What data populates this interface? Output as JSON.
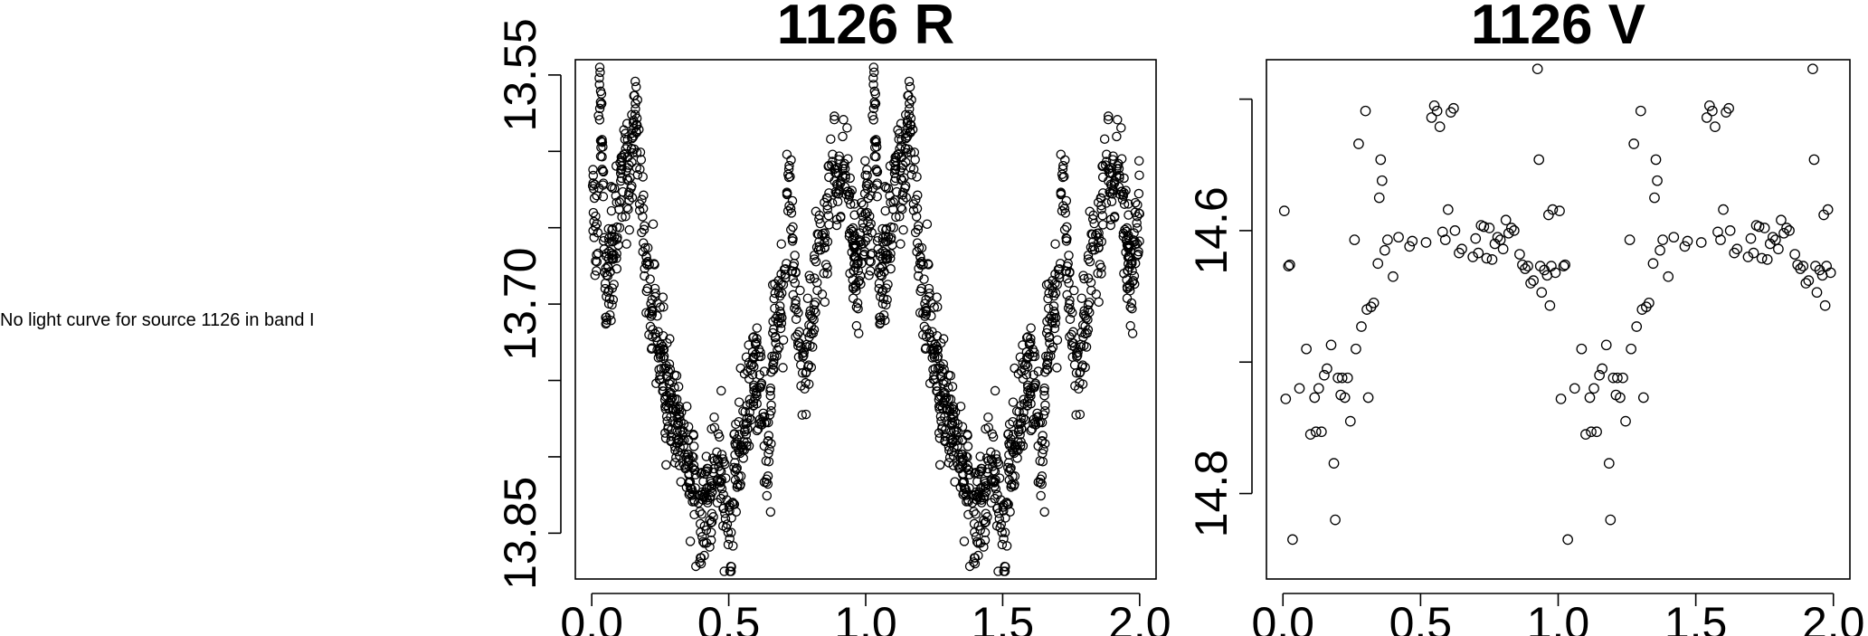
{
  "note": "No light curve for source 1126 in band I",
  "chart_data": [
    {
      "type": "scatter",
      "title": "1126 R",
      "xlabel": "",
      "ylabel": "",
      "xlim": [
        -0.06,
        2.06
      ],
      "ylim": [
        13.88,
        13.54
      ],
      "x_ticks": [
        0.0,
        0.5,
        1.0,
        1.5,
        2.0
      ],
      "x_tick_labels": [
        "0.0",
        "0.5",
        "1.0",
        "1.5",
        "2.0"
      ],
      "y_ticks": [
        13.55,
        13.6,
        13.65,
        13.7,
        13.75,
        13.8,
        13.85
      ],
      "y_tick_labels": [
        "13.55",
        "",
        "",
        "13.70",
        "",
        "",
        "13.85"
      ],
      "grid": false,
      "phase_folded": true,
      "model": "Dense phase-folded light curve with roughly 1900 observations; double-humped variation repeated over two cycles of phase.",
      "series": [
        {
          "points_first_cycle_sample": [
            [
              0.0,
              13.63
            ],
            [
              0.02,
              13.67
            ],
            [
              0.03,
              13.55
            ],
            [
              0.05,
              13.69
            ],
            [
              0.08,
              13.66
            ],
            [
              0.1,
              13.63
            ],
            [
              0.12,
              13.6
            ],
            [
              0.14,
              13.63
            ],
            [
              0.16,
              13.56
            ],
            [
              0.17,
              13.61
            ],
            [
              0.19,
              13.66
            ],
            [
              0.22,
              13.7
            ],
            [
              0.25,
              13.73
            ],
            [
              0.28,
              13.76
            ],
            [
              0.31,
              13.78
            ],
            [
              0.34,
              13.8
            ],
            [
              0.37,
              13.82
            ],
            [
              0.4,
              13.84
            ],
            [
              0.44,
              13.82
            ],
            [
              0.47,
              13.8
            ],
            [
              0.5,
              13.86
            ],
            [
              0.52,
              13.82
            ],
            [
              0.55,
              13.78
            ],
            [
              0.58,
              13.75
            ],
            [
              0.61,
              13.74
            ],
            [
              0.64,
              13.8
            ],
            [
              0.67,
              13.71
            ],
            [
              0.7,
              13.7
            ],
            [
              0.72,
              13.62
            ],
            [
              0.75,
              13.72
            ],
            [
              0.78,
              13.74
            ],
            [
              0.8,
              13.72
            ],
            [
              0.83,
              13.66
            ],
            [
              0.86,
              13.65
            ],
            [
              0.88,
              13.6
            ],
            [
              0.9,
              13.63
            ],
            [
              0.93,
              13.61
            ],
            [
              0.95,
              13.66
            ],
            [
              0.97,
              13.68
            ],
            [
              1.0,
              13.63
            ]
          ]
        }
      ]
    },
    {
      "type": "scatter",
      "title": "1126 V",
      "xlabel": "",
      "ylabel": "",
      "xlim": [
        -0.06,
        2.06
      ],
      "ylim": [
        14.865,
        14.47
      ],
      "x_ticks": [
        0.0,
        0.5,
        1.0,
        1.5,
        2.0
      ],
      "x_tick_labels": [
        "0.0",
        "0.5",
        "1.0",
        "1.5",
        "2.0"
      ],
      "y_ticks": [
        14.5,
        14.6,
        14.7,
        14.8
      ],
      "y_tick_labels": [
        "",
        "14.6",
        "",
        "14.8"
      ],
      "grid": false,
      "phase_folded": true,
      "series": [
        {
          "points_first_cycle": [
            [
              0.005,
              14.585
            ],
            [
              0.01,
              14.728
            ],
            [
              0.02,
              14.627
            ],
            [
              0.025,
              14.626
            ],
            [
              0.035,
              14.835
            ],
            [
              0.06,
              14.72
            ],
            [
              0.085,
              14.69
            ],
            [
              0.1,
              14.755
            ],
            [
              0.115,
              14.727
            ],
            [
              0.12,
              14.753
            ],
            [
              0.13,
              14.72
            ],
            [
              0.14,
              14.753
            ],
            [
              0.15,
              14.71
            ],
            [
              0.16,
              14.705
            ],
            [
              0.175,
              14.687
            ],
            [
              0.185,
              14.777
            ],
            [
              0.19,
              14.82
            ],
            [
              0.2,
              14.712
            ],
            [
              0.21,
              14.725
            ],
            [
              0.215,
              14.712
            ],
            [
              0.225,
              14.727
            ],
            [
              0.235,
              14.712
            ],
            [
              0.245,
              14.745
            ],
            [
              0.26,
              14.607
            ],
            [
              0.265,
              14.69
            ],
            [
              0.275,
              14.534
            ],
            [
              0.285,
              14.673
            ],
            [
              0.3,
              14.509
            ],
            [
              0.305,
              14.66
            ],
            [
              0.31,
              14.727
            ],
            [
              0.32,
              14.658
            ],
            [
              0.33,
              14.655
            ],
            [
              0.345,
              14.625
            ],
            [
              0.35,
              14.575
            ],
            [
              0.355,
              14.546
            ],
            [
              0.36,
              14.562
            ],
            [
              0.37,
              14.615
            ],
            [
              0.38,
              14.607
            ],
            [
              0.4,
              14.635
            ],
            [
              0.42,
              14.605
            ],
            [
              0.46,
              14.612
            ],
            [
              0.47,
              14.608
            ],
            [
              0.52,
              14.609
            ],
            [
              0.54,
              14.514
            ],
            [
              0.55,
              14.505
            ],
            [
              0.56,
              14.509
            ],
            [
              0.57,
              14.521
            ],
            [
              0.58,
              14.601
            ],
            [
              0.59,
              14.607
            ],
            [
              0.6,
              14.584
            ],
            [
              0.61,
              14.51
            ],
            [
              0.62,
              14.507
            ],
            [
              0.625,
              14.6
            ],
            [
              0.64,
              14.617
            ],
            [
              0.65,
              14.614
            ],
            [
              0.69,
              14.62
            ],
            [
              0.7,
              14.606
            ],
            [
              0.71,
              14.617
            ],
            [
              0.72,
              14.596
            ],
            [
              0.73,
              14.597
            ],
            [
              0.74,
              14.621
            ],
            [
              0.75,
              14.598
            ],
            [
              0.76,
              14.622
            ],
            [
              0.77,
              14.61
            ],
            [
              0.78,
              14.605
            ],
            [
              0.79,
              14.607
            ],
            [
              0.8,
              14.614
            ],
            [
              0.81,
              14.592
            ],
            [
              0.82,
              14.602
            ],
            [
              0.83,
              14.598
            ],
            [
              0.84,
              14.6
            ],
            [
              0.86,
              14.618
            ],
            [
              0.87,
              14.626
            ],
            [
              0.88,
              14.629
            ],
            [
              0.89,
              14.627
            ],
            [
              0.9,
              14.64
            ],
            [
              0.91,
              14.638
            ],
            [
              0.925,
              14.477
            ],
            [
              0.93,
              14.546
            ],
            [
              0.935,
              14.627
            ],
            [
              0.94,
              14.647
            ],
            [
              0.95,
              14.63
            ],
            [
              0.96,
              14.634
            ],
            [
              0.965,
              14.588
            ],
            [
              0.97,
              14.657
            ],
            [
              0.975,
              14.627
            ],
            [
              0.98,
              14.584
            ],
            [
              0.99,
              14.632
            ]
          ]
        }
      ]
    }
  ]
}
